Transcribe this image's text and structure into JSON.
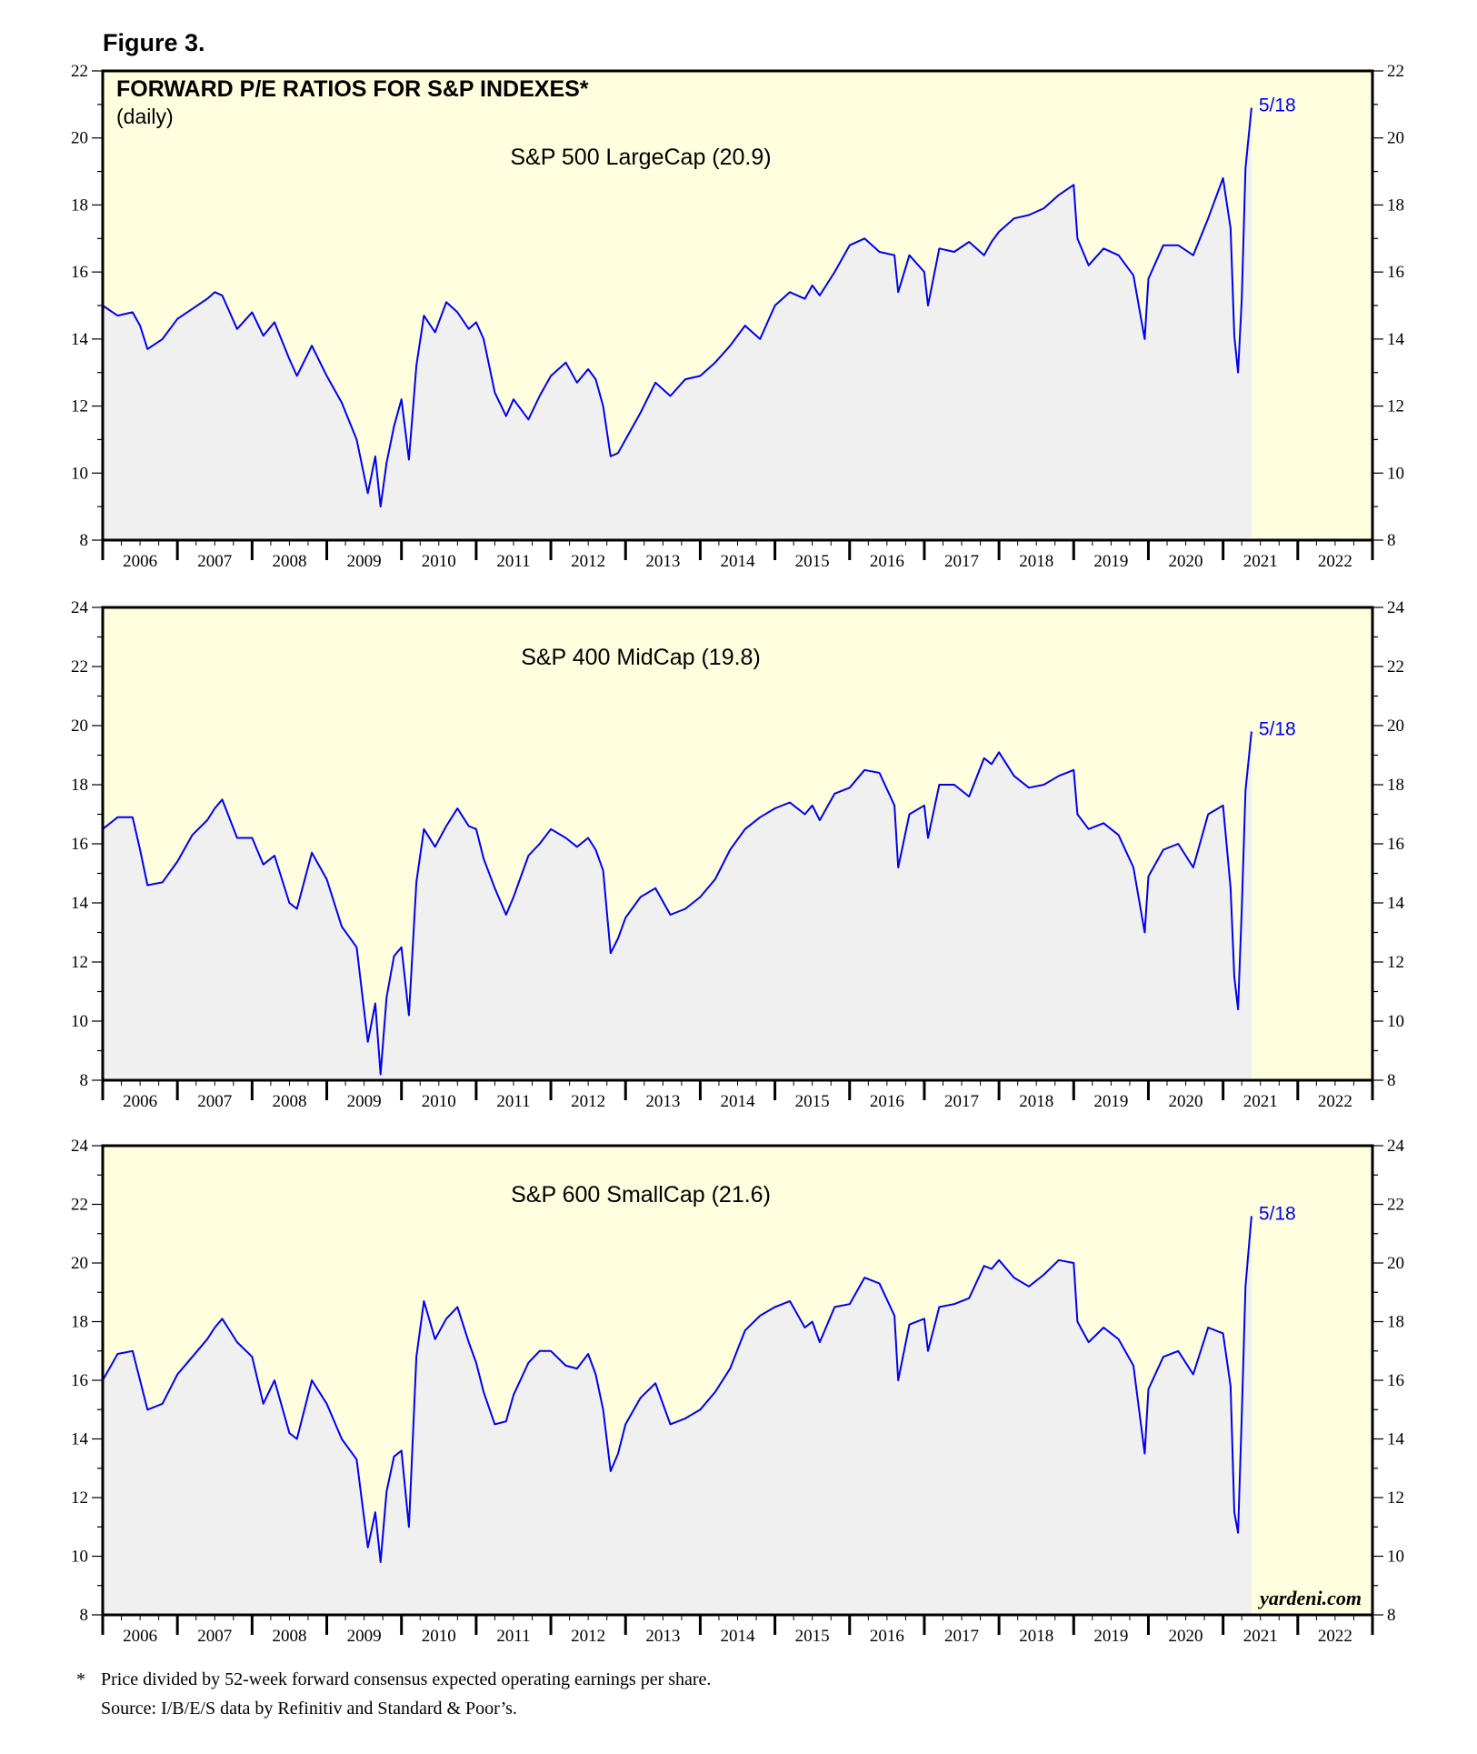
{
  "figure_label": "Figure 3.",
  "main_title": "FORWARD P/E RATIOS FOR S&P INDEXES*",
  "main_subtitle": "(daily)",
  "watermark": "yardeni.com",
  "footnote": "Price divided by 52-week forward consensus expected operating earnings per share.",
  "footnote_marker": "*",
  "source": "Source: I/B/E/S data by Refinitiv and Standard & Poor’s.",
  "colors": {
    "plot_background": "#ffffe0",
    "area_fill": "#f0f0f0",
    "line": "#0000ee",
    "label": "#0000ee"
  },
  "chart_data": [
    {
      "type": "area",
      "title": "S&P 500 LargeCap (20.9)",
      "end_label": "5/18",
      "x_ticks": [
        "2006",
        "2007",
        "2008",
        "2009",
        "2010",
        "2011",
        "2012",
        "2013",
        "2014",
        "2015",
        "2016",
        "2017",
        "2018",
        "2019",
        "2020",
        "2021",
        "2022"
      ],
      "xlim": [
        2005.0,
        2022.0
      ],
      "ylim": [
        8,
        22
      ],
      "y_ticks": [
        8,
        10,
        12,
        14,
        16,
        18,
        20,
        22
      ],
      "series": [
        {
          "x": [
            2005.0,
            2005.2,
            2005.4,
            2005.5,
            2005.6,
            2005.8,
            2006.0,
            2006.2,
            2006.4,
            2006.5,
            2006.6,
            2006.8,
            2007.0,
            2007.15,
            2007.3,
            2007.5,
            2007.6,
            2007.8,
            2008.0,
            2008.2,
            2008.4,
            2008.55,
            2008.65,
            2008.72,
            2008.8,
            2008.9,
            2009.0,
            2009.1,
            2009.2,
            2009.3,
            2009.45,
            2009.6,
            2009.75,
            2009.9,
            2010.0,
            2010.1,
            2010.25,
            2010.4,
            2010.5,
            2010.7,
            2010.85,
            2011.0,
            2011.2,
            2011.35,
            2011.5,
            2011.6,
            2011.7,
            2011.8,
            2011.9,
            2012.0,
            2012.2,
            2012.4,
            2012.6,
            2012.8,
            2013.0,
            2013.2,
            2013.4,
            2013.6,
            2013.8,
            2014.0,
            2014.2,
            2014.4,
            2014.5,
            2014.6,
            2014.8,
            2015.0,
            2015.2,
            2015.4,
            2015.6,
            2015.65,
            2015.8,
            2016.0,
            2016.05,
            2016.2,
            2016.4,
            2016.6,
            2016.8,
            2016.9,
            2017.0,
            2017.2,
            2017.4,
            2017.6,
            2017.8,
            2018.0,
            2018.05,
            2018.2,
            2018.4,
            2018.6,
            2018.8,
            2018.95,
            2019.0,
            2019.2,
            2019.4,
            2019.6,
            2019.8,
            2020.0,
            2020.1,
            2020.15,
            2020.2,
            2020.25,
            2020.3,
            2020.38
          ],
          "y": [
            15.0,
            14.7,
            14.8,
            14.4,
            13.7,
            14.0,
            14.6,
            14.9,
            15.2,
            15.4,
            15.3,
            14.3,
            14.8,
            14.1,
            14.5,
            13.4,
            12.9,
            13.8,
            12.9,
            12.1,
            11.0,
            9.4,
            10.5,
            9.0,
            10.3,
            11.4,
            12.2,
            10.4,
            13.2,
            14.7,
            14.2,
            15.1,
            14.8,
            14.3,
            14.5,
            14.0,
            12.4,
            11.7,
            12.2,
            11.6,
            12.3,
            12.9,
            13.3,
            12.7,
            13.1,
            12.8,
            12.0,
            10.5,
            10.6,
            11.0,
            11.8,
            12.7,
            12.3,
            12.8,
            12.9,
            13.3,
            13.8,
            14.4,
            14.0,
            15.0,
            15.4,
            15.2,
            15.6,
            15.3,
            16.0,
            16.8,
            17.0,
            16.6,
            16.5,
            15.4,
            16.5,
            16.0,
            15.0,
            16.7,
            16.6,
            16.9,
            16.5,
            16.9,
            17.2,
            17.6,
            17.7,
            17.9,
            18.3,
            18.6,
            17.0,
            16.2,
            16.7,
            16.5,
            15.9,
            14.0,
            15.8,
            16.8,
            16.8,
            16.5,
            17.6,
            18.8,
            17.3,
            14.1,
            13.0,
            15.2,
            19.1,
            20.9
          ]
        }
      ]
    },
    {
      "type": "area",
      "title": "S&P 400 MidCap (19.8)",
      "end_label": "5/18",
      "x_ticks": [
        "2006",
        "2007",
        "2008",
        "2009",
        "2010",
        "2011",
        "2012",
        "2013",
        "2014",
        "2015",
        "2016",
        "2017",
        "2018",
        "2019",
        "2020",
        "2021",
        "2022"
      ],
      "xlim": [
        2005.0,
        2022.0
      ],
      "ylim": [
        8,
        24
      ],
      "y_ticks": [
        8,
        10,
        12,
        14,
        16,
        18,
        20,
        22,
        24
      ],
      "series": [
        {
          "x": [
            2005.0,
            2005.2,
            2005.4,
            2005.5,
            2005.6,
            2005.8,
            2006.0,
            2006.2,
            2006.4,
            2006.5,
            2006.6,
            2006.8,
            2007.0,
            2007.15,
            2007.3,
            2007.5,
            2007.6,
            2007.8,
            2008.0,
            2008.2,
            2008.4,
            2008.55,
            2008.65,
            2008.72,
            2008.8,
            2008.9,
            2009.0,
            2009.1,
            2009.2,
            2009.3,
            2009.45,
            2009.6,
            2009.75,
            2009.9,
            2010.0,
            2010.1,
            2010.25,
            2010.4,
            2010.5,
            2010.7,
            2010.85,
            2011.0,
            2011.2,
            2011.35,
            2011.5,
            2011.6,
            2011.7,
            2011.8,
            2011.9,
            2012.0,
            2012.2,
            2012.4,
            2012.6,
            2012.8,
            2013.0,
            2013.2,
            2013.4,
            2013.6,
            2013.8,
            2014.0,
            2014.2,
            2014.4,
            2014.5,
            2014.6,
            2014.8,
            2015.0,
            2015.2,
            2015.4,
            2015.6,
            2015.65,
            2015.8,
            2016.0,
            2016.05,
            2016.2,
            2016.4,
            2016.6,
            2016.8,
            2016.9,
            2017.0,
            2017.2,
            2017.4,
            2017.6,
            2017.8,
            2018.0,
            2018.05,
            2018.2,
            2018.4,
            2018.6,
            2018.8,
            2018.95,
            2019.0,
            2019.2,
            2019.4,
            2019.6,
            2019.8,
            2020.0,
            2020.1,
            2020.15,
            2020.2,
            2020.25,
            2020.3,
            2020.38
          ],
          "y": [
            16.5,
            16.9,
            16.9,
            15.8,
            14.6,
            14.7,
            15.4,
            16.3,
            16.8,
            17.2,
            17.5,
            16.2,
            16.2,
            15.3,
            15.6,
            14.0,
            13.8,
            15.7,
            14.8,
            13.2,
            12.5,
            9.3,
            10.6,
            8.2,
            10.8,
            12.2,
            12.5,
            10.2,
            14.7,
            16.5,
            15.9,
            16.6,
            17.2,
            16.6,
            16.5,
            15.5,
            14.5,
            13.6,
            14.2,
            15.6,
            16.0,
            16.5,
            16.2,
            15.9,
            16.2,
            15.8,
            15.1,
            12.3,
            12.8,
            13.5,
            14.2,
            14.5,
            13.6,
            13.8,
            14.2,
            14.8,
            15.8,
            16.5,
            16.9,
            17.2,
            17.4,
            17.0,
            17.3,
            16.8,
            17.7,
            17.9,
            18.5,
            18.4,
            17.3,
            15.2,
            17.0,
            17.3,
            16.2,
            18.0,
            18.0,
            17.6,
            18.9,
            18.7,
            19.1,
            18.3,
            17.9,
            18.0,
            18.3,
            18.5,
            17.0,
            16.5,
            16.7,
            16.3,
            15.2,
            13.0,
            14.9,
            15.8,
            16.0,
            15.2,
            17.0,
            17.3,
            14.5,
            11.5,
            10.4,
            13.8,
            17.8,
            19.8
          ]
        }
      ]
    },
    {
      "type": "area",
      "title": "S&P 600 SmallCap (21.6)",
      "end_label": "5/18",
      "x_ticks": [
        "2006",
        "2007",
        "2008",
        "2009",
        "2010",
        "2011",
        "2012",
        "2013",
        "2014",
        "2015",
        "2016",
        "2017",
        "2018",
        "2019",
        "2020",
        "2021",
        "2022"
      ],
      "xlim": [
        2005.0,
        2022.0
      ],
      "ylim": [
        8,
        24
      ],
      "y_ticks": [
        8,
        10,
        12,
        14,
        16,
        18,
        20,
        22,
        24
      ],
      "series": [
        {
          "x": [
            2005.0,
            2005.2,
            2005.4,
            2005.5,
            2005.6,
            2005.8,
            2006.0,
            2006.2,
            2006.4,
            2006.5,
            2006.6,
            2006.8,
            2007.0,
            2007.15,
            2007.3,
            2007.5,
            2007.6,
            2007.8,
            2008.0,
            2008.2,
            2008.4,
            2008.55,
            2008.65,
            2008.72,
            2008.8,
            2008.9,
            2009.0,
            2009.1,
            2009.2,
            2009.3,
            2009.45,
            2009.6,
            2009.75,
            2009.9,
            2010.0,
            2010.1,
            2010.25,
            2010.4,
            2010.5,
            2010.7,
            2010.85,
            2011.0,
            2011.2,
            2011.35,
            2011.5,
            2011.6,
            2011.7,
            2011.8,
            2011.9,
            2012.0,
            2012.2,
            2012.4,
            2012.6,
            2012.8,
            2013.0,
            2013.2,
            2013.4,
            2013.6,
            2013.8,
            2014.0,
            2014.2,
            2014.4,
            2014.5,
            2014.6,
            2014.8,
            2015.0,
            2015.2,
            2015.4,
            2015.6,
            2015.65,
            2015.8,
            2016.0,
            2016.05,
            2016.2,
            2016.4,
            2016.6,
            2016.8,
            2016.9,
            2017.0,
            2017.2,
            2017.4,
            2017.6,
            2017.8,
            2018.0,
            2018.05,
            2018.2,
            2018.4,
            2018.6,
            2018.8,
            2018.95,
            2019.0,
            2019.2,
            2019.4,
            2019.6,
            2019.8,
            2020.0,
            2020.1,
            2020.15,
            2020.2,
            2020.25,
            2020.3,
            2020.38
          ],
          "y": [
            16.0,
            16.9,
            17.0,
            16.0,
            15.0,
            15.2,
            16.2,
            16.8,
            17.4,
            17.8,
            18.1,
            17.3,
            16.8,
            15.2,
            16.0,
            14.2,
            14.0,
            16.0,
            15.2,
            14.0,
            13.3,
            10.3,
            11.5,
            9.8,
            12.2,
            13.4,
            13.6,
            11.0,
            16.8,
            18.7,
            17.4,
            18.1,
            18.5,
            17.3,
            16.6,
            15.6,
            14.5,
            14.6,
            15.5,
            16.6,
            17.0,
            17.0,
            16.5,
            16.4,
            16.9,
            16.2,
            15.0,
            12.9,
            13.5,
            14.5,
            15.4,
            15.9,
            14.5,
            14.7,
            15.0,
            15.6,
            16.4,
            17.7,
            18.2,
            18.5,
            18.7,
            17.8,
            18.0,
            17.3,
            18.5,
            18.6,
            19.5,
            19.3,
            18.2,
            16.0,
            17.9,
            18.1,
            17.0,
            18.5,
            18.6,
            18.8,
            19.9,
            19.8,
            20.1,
            19.5,
            19.2,
            19.6,
            20.1,
            20.0,
            18.0,
            17.3,
            17.8,
            17.4,
            16.5,
            13.5,
            15.7,
            16.8,
            17.0,
            16.2,
            17.8,
            17.6,
            15.8,
            11.5,
            10.8,
            14.8,
            19.2,
            21.6
          ]
        }
      ]
    }
  ]
}
